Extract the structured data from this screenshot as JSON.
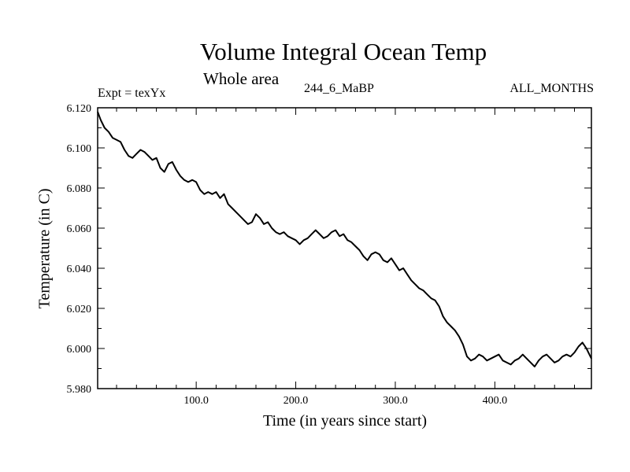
{
  "chart_data": {
    "type": "line",
    "title": "Volume Integral Ocean Temp",
    "subtitle": "Whole area",
    "expt_label": "Expt = texYx",
    "period_label": "244_6_MaBP",
    "months_label": "ALL_MONTHS",
    "xlabel": "Time (in years since start)",
    "ylabel": "Temperature (in C)",
    "xlim": [
      1,
      497
    ],
    "ylim": [
      5.98,
      6.12
    ],
    "xticks": [
      100,
      200,
      300,
      400
    ],
    "xtick_labels": [
      "100.0",
      "200.0",
      "300.0",
      "400.0"
    ],
    "yticks": [
      5.98,
      6.0,
      6.02,
      6.04,
      6.06,
      6.08,
      6.1,
      6.12
    ],
    "ytick_labels": [
      "5.980",
      "6.000",
      "6.020",
      "6.040",
      "6.060",
      "6.080",
      "6.100",
      "6.120"
    ],
    "grid": false,
    "series": [
      {
        "color": "#000000",
        "x": [
          1,
          4,
          8,
          12,
          16,
          20,
          24,
          28,
          32,
          36,
          40,
          44,
          48,
          52,
          56,
          60,
          64,
          68,
          72,
          76,
          80,
          84,
          88,
          92,
          96,
          100,
          104,
          108,
          112,
          116,
          120,
          124,
          128,
          132,
          136,
          140,
          144,
          148,
          152,
          156,
          160,
          164,
          168,
          172,
          176,
          180,
          184,
          188,
          192,
          196,
          200,
          204,
          208,
          212,
          216,
          220,
          224,
          228,
          232,
          236,
          240,
          244,
          248,
          252,
          256,
          260,
          264,
          268,
          272,
          276,
          280,
          284,
          288,
          292,
          296,
          300,
          304,
          308,
          312,
          316,
          320,
          324,
          328,
          332,
          336,
          340,
          344,
          348,
          352,
          356,
          360,
          364,
          368,
          372,
          376,
          380,
          384,
          388,
          392,
          396,
          400,
          404,
          408,
          412,
          416,
          420,
          424,
          428,
          432,
          436,
          440,
          444,
          448,
          452,
          456,
          460,
          464,
          468,
          472,
          476,
          480,
          484,
          488,
          492,
          497
        ],
        "values": [
          6.118,
          6.114,
          6.11,
          6.108,
          6.105,
          6.104,
          6.103,
          6.099,
          6.096,
          6.095,
          6.097,
          6.099,
          6.098,
          6.096,
          6.094,
          6.095,
          6.09,
          6.088,
          6.092,
          6.093,
          6.089,
          6.086,
          6.084,
          6.083,
          6.084,
          6.083,
          6.079,
          6.077,
          6.078,
          6.077,
          6.078,
          6.075,
          6.077,
          6.072,
          6.07,
          6.068,
          6.066,
          6.064,
          6.062,
          6.063,
          6.067,
          6.065,
          6.062,
          6.063,
          6.06,
          6.058,
          6.057,
          6.058,
          6.056,
          6.055,
          6.054,
          6.052,
          6.054,
          6.055,
          6.057,
          6.059,
          6.057,
          6.055,
          6.056,
          6.058,
          6.059,
          6.056,
          6.057,
          6.054,
          6.053,
          6.051,
          6.049,
          6.046,
          6.044,
          6.047,
          6.048,
          6.047,
          6.044,
          6.043,
          6.045,
          6.042,
          6.039,
          6.04,
          6.037,
          6.034,
          6.032,
          6.03,
          6.029,
          6.027,
          6.025,
          6.024,
          6.021,
          6.016,
          6.013,
          6.011,
          6.009,
          6.006,
          6.002,
          5.996,
          5.994,
          5.995,
          5.997,
          5.996,
          5.994,
          5.995,
          5.996,
          5.997,
          5.994,
          5.993,
          5.992,
          5.994,
          5.995,
          5.997,
          5.995,
          5.993,
          5.991,
          5.994,
          5.996,
          5.997,
          5.995,
          5.993,
          5.994,
          5.996,
          5.997,
          5.996,
          5.998,
          6.001,
          6.003,
          6.0,
          5.995
        ]
      }
    ]
  }
}
